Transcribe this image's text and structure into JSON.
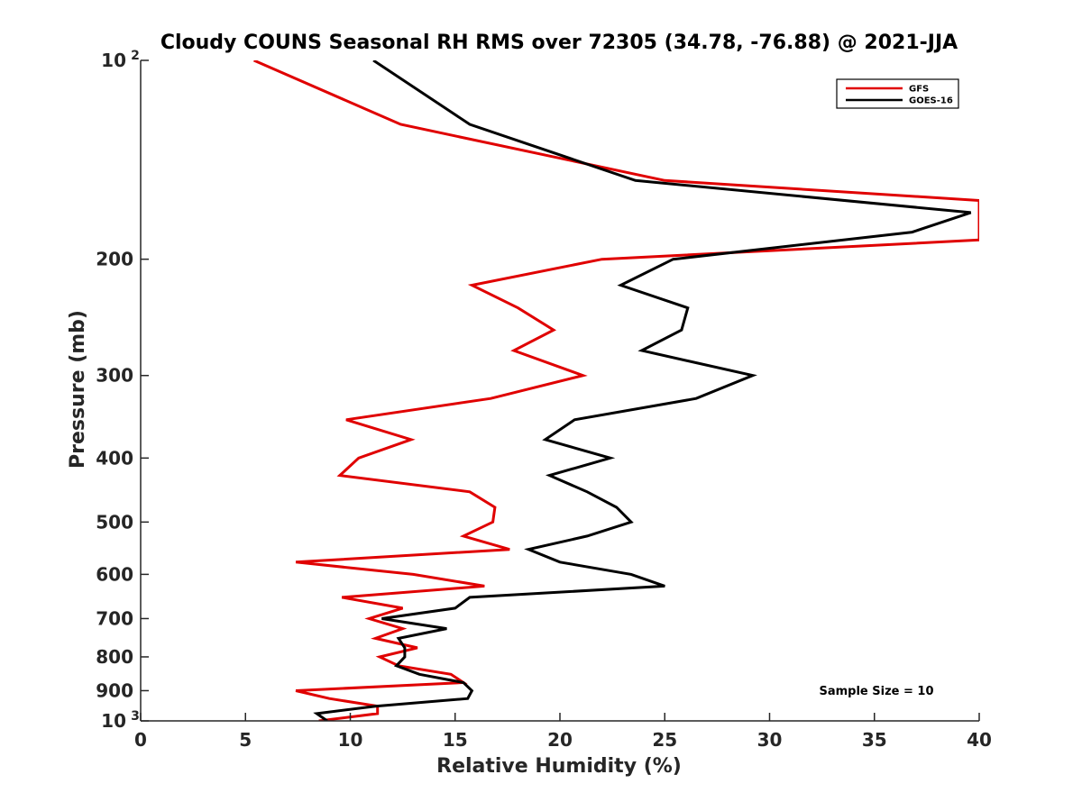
{
  "chart_data": {
    "type": "line",
    "title": "Cloudy COUNS Seasonal RH RMS over 72305 (34.78, -76.88) @ 2021-JJA",
    "xlabel": "Relative Humidity (%)",
    "ylabel": "Pressure (mb)",
    "xlim": [
      0,
      40
    ],
    "ylim": [
      100,
      1000
    ],
    "yscale": "log",
    "ydirection": "reversed",
    "grid": false,
    "legend_position": "top-right",
    "annotation": "Sample Size = 10",
    "xticks": [
      0,
      5,
      10,
      15,
      20,
      25,
      30,
      35,
      40
    ],
    "xtick_labels": [
      "0",
      "5",
      "10",
      "15",
      "20",
      "25",
      "30",
      "35",
      "40"
    ],
    "yticks": [
      {
        "value": 100,
        "base": "10",
        "exp": "2"
      },
      {
        "value": 200,
        "base": "200",
        "exp": ""
      },
      {
        "value": 300,
        "base": "300",
        "exp": ""
      },
      {
        "value": 400,
        "base": "400",
        "exp": ""
      },
      {
        "value": 500,
        "base": "500",
        "exp": ""
      },
      {
        "value": 600,
        "base": "600",
        "exp": ""
      },
      {
        "value": 700,
        "base": "700",
        "exp": ""
      },
      {
        "value": 800,
        "base": "800",
        "exp": ""
      },
      {
        "value": 900,
        "base": "900",
        "exp": ""
      },
      {
        "value": 1000,
        "base": "10",
        "exp": "3"
      }
    ],
    "series": [
      {
        "name": "GFS",
        "color": "#e00000",
        "points": [
          [
            5.4,
            100
          ],
          [
            12.4,
            125
          ],
          [
            25.0,
            152
          ],
          [
            40.0,
            163
          ],
          [
            40.0,
            187
          ],
          [
            22.0,
            200
          ],
          [
            15.8,
            219
          ],
          [
            18.0,
            237
          ],
          [
            19.7,
            256
          ],
          [
            17.8,
            275
          ],
          [
            21.1,
            300
          ],
          [
            16.7,
            325
          ],
          [
            9.8,
            350
          ],
          [
            12.9,
            375
          ],
          [
            10.4,
            400
          ],
          [
            9.5,
            425
          ],
          [
            15.7,
            450
          ],
          [
            16.9,
            475
          ],
          [
            16.8,
            500
          ],
          [
            15.4,
            525
          ],
          [
            17.6,
            550
          ],
          [
            7.4,
            575
          ],
          [
            13.0,
            600
          ],
          [
            16.4,
            625
          ],
          [
            9.6,
            650
          ],
          [
            12.5,
            675
          ],
          [
            10.9,
            700
          ],
          [
            12.5,
            725
          ],
          [
            11.2,
            750
          ],
          [
            13.2,
            775
          ],
          [
            11.4,
            800
          ],
          [
            12.3,
            825
          ],
          [
            14.8,
            850
          ],
          [
            15.4,
            875
          ],
          [
            7.4,
            900
          ],
          [
            9.0,
            925
          ],
          [
            11.3,
            950
          ],
          [
            11.3,
            975
          ],
          [
            8.5,
            1000
          ]
        ]
      },
      {
        "name": "GOES-16",
        "color": "#000000",
        "points": [
          [
            11.1,
            100
          ],
          [
            15.7,
            125
          ],
          [
            23.6,
            152
          ],
          [
            39.6,
            170
          ],
          [
            36.8,
            182
          ],
          [
            25.4,
            200
          ],
          [
            22.9,
            219
          ],
          [
            26.1,
            237
          ],
          [
            25.8,
            256
          ],
          [
            23.9,
            275
          ],
          [
            29.2,
            300
          ],
          [
            26.5,
            325
          ],
          [
            20.7,
            350
          ],
          [
            19.3,
            375
          ],
          [
            22.4,
            400
          ],
          [
            19.5,
            425
          ],
          [
            21.3,
            450
          ],
          [
            22.7,
            475
          ],
          [
            23.4,
            500
          ],
          [
            21.3,
            525
          ],
          [
            18.5,
            550
          ],
          [
            20.0,
            575
          ],
          [
            23.4,
            600
          ],
          [
            25.0,
            625
          ],
          [
            15.7,
            650
          ],
          [
            15.0,
            675
          ],
          [
            11.5,
            700
          ],
          [
            14.6,
            725
          ],
          [
            12.3,
            750
          ],
          [
            12.6,
            775
          ],
          [
            12.6,
            800
          ],
          [
            12.2,
            825
          ],
          [
            13.3,
            850
          ],
          [
            15.4,
            875
          ],
          [
            15.8,
            900
          ],
          [
            15.6,
            925
          ],
          [
            11.2,
            950
          ],
          [
            8.4,
            975
          ],
          [
            8.9,
            1000
          ]
        ]
      }
    ]
  }
}
